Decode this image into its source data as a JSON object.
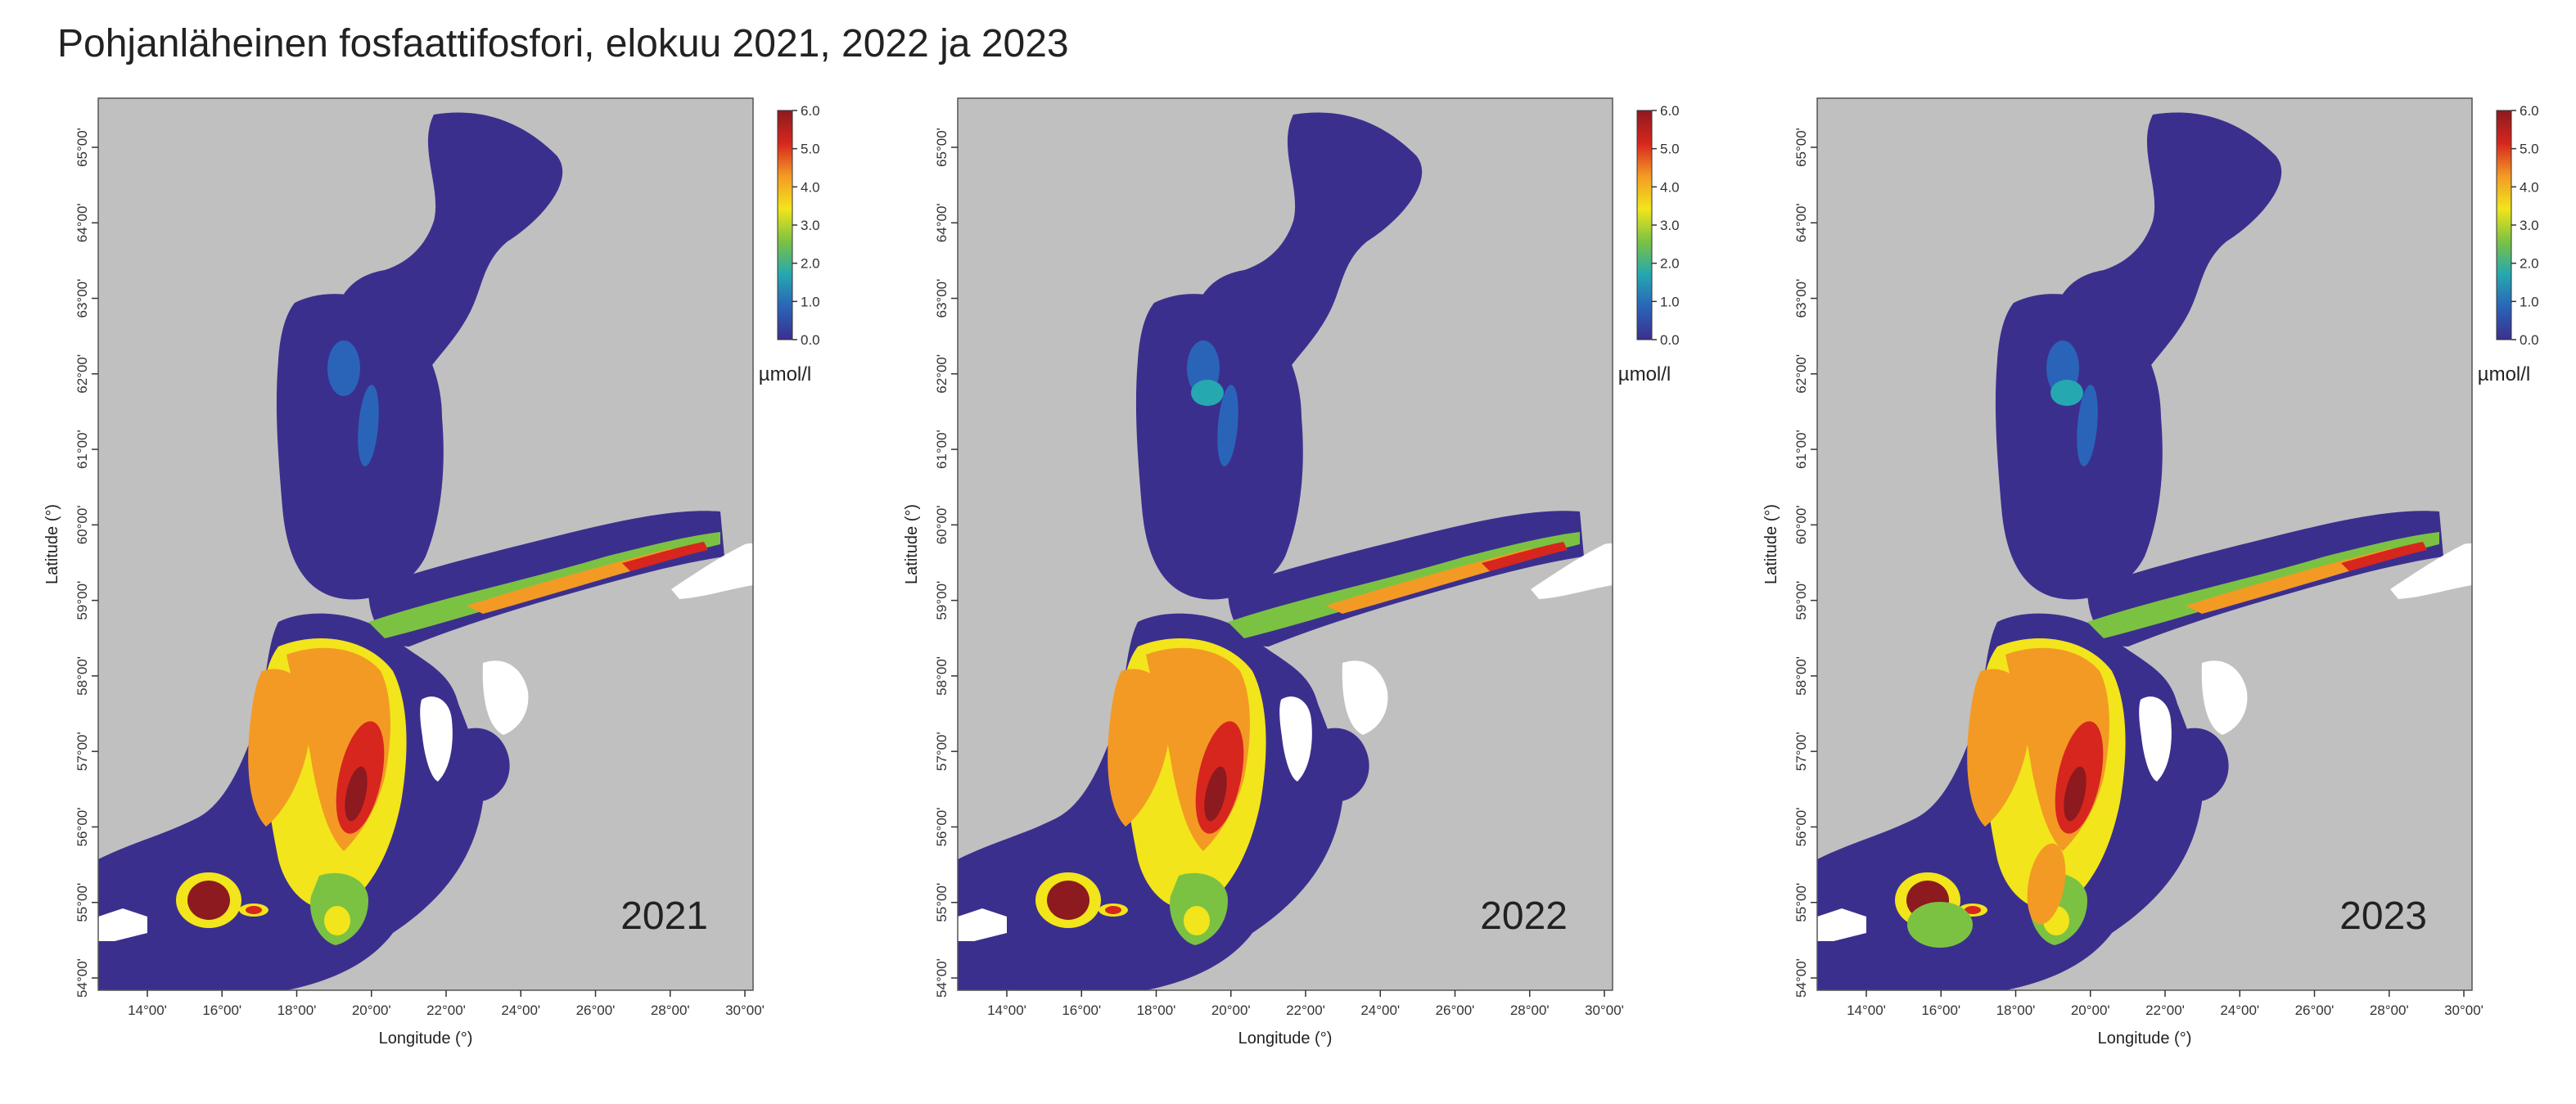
{
  "title": "Pohjanläheinen fosfaattifosfori, elokuu 2021, 2022 ja 2023",
  "maps": [
    {
      "year": "2021",
      "x_axis_label": "Longitude (°)",
      "y_axis_label": "Latitude (°)",
      "lon_ticks": [
        "14°00'",
        "16°00'",
        "18°00'",
        "20°00'",
        "22°00'",
        "24°00'",
        "26°00'",
        "28°00'",
        "30°00'"
      ],
      "lat_ticks": [
        "54°00'",
        "55°00'",
        "56°00'",
        "57°00'",
        "58°00'",
        "59°00'",
        "60°00'",
        "61°00'",
        "62°00'",
        "63°00'",
        "64°00'",
        "65°00'"
      ],
      "colorbar": {
        "ticks": [
          "0.0",
          "1.0",
          "2.0",
          "3.0",
          "4.0",
          "5.0",
          "6.0"
        ],
        "unit": "µmol/l"
      }
    },
    {
      "year": "2022",
      "x_axis_label": "Longitude (°)",
      "y_axis_label": "Latitude (°)",
      "lon_ticks": [
        "14°00'",
        "16°00'",
        "18°00'",
        "20°00'",
        "22°00'",
        "24°00'",
        "26°00'",
        "28°00'",
        "30°00'"
      ],
      "lat_ticks": [
        "54°00'",
        "55°00'",
        "56°00'",
        "57°00'",
        "58°00'",
        "59°00'",
        "60°00'",
        "61°00'",
        "62°00'",
        "63°00'",
        "64°00'",
        "65°00'"
      ],
      "colorbar": {
        "ticks": [
          "0.0",
          "1.0",
          "2.0",
          "3.0",
          "4.0",
          "5.0",
          "6.0"
        ],
        "unit": "µmol/l"
      }
    },
    {
      "year": "2023",
      "x_axis_label": "Longitude (°)",
      "y_axis_label": "Latitude (°)",
      "lon_ticks": [
        "14°00'",
        "16°00'",
        "18°00'",
        "20°00'",
        "22°00'",
        "24°00'",
        "26°00'",
        "28°00'",
        "30°00'"
      ],
      "lat_ticks": [
        "54°00'",
        "55°00'",
        "56°00'",
        "57°00'",
        "58°00'",
        "59°00'",
        "60°00'",
        "61°00'",
        "62°00'",
        "63°00'",
        "64°00'",
        "65°00'"
      ],
      "colorbar": {
        "ticks": [
          "0.0",
          "1.0",
          "2.0",
          "3.0",
          "4.0",
          "5.0",
          "6.0"
        ],
        "unit": "µmol/l"
      }
    }
  ],
  "colors": {
    "land": "#c0c0c0",
    "sea_low": "#3b2f8e",
    "scale": [
      "#3b2f8e",
      "#2a64b8",
      "#25a8b0",
      "#7cc242",
      "#f2e51b",
      "#f39a25",
      "#d7261e",
      "#8c1a1f"
    ]
  }
}
